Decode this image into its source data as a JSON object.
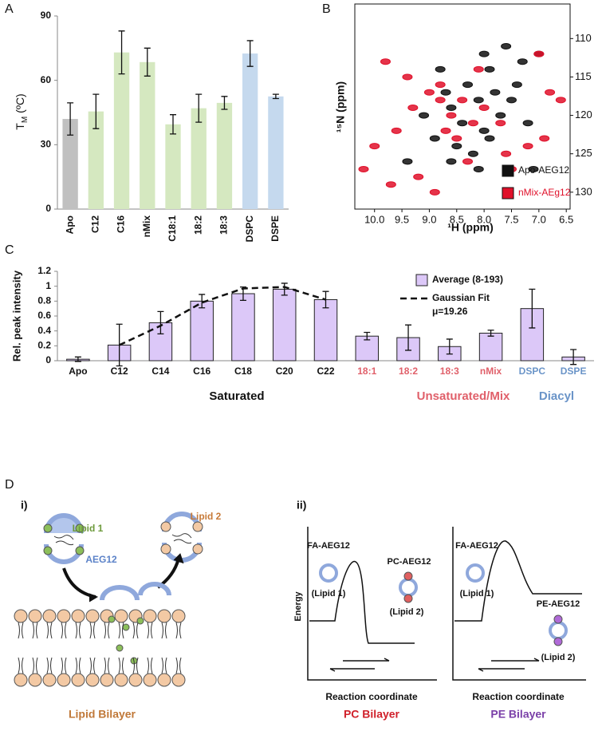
{
  "panel_labels": [
    "A",
    "B",
    "C",
    "D"
  ],
  "subpanel_labels": [
    "i)",
    "ii)"
  ],
  "chart_data": [
    {
      "type": "bar",
      "ylabel": "T",
      "ylabel_sub": "M",
      "ylabel_unit": "(ºC)",
      "categories": [
        "Apo",
        "C12",
        "C16",
        "nMix",
        "C18:1",
        "18:2",
        "18:3",
        "DSPC",
        "DSPE"
      ],
      "values": [
        42,
        45.5,
        73,
        68.5,
        39.5,
        47,
        49.5,
        72.5,
        52.5
      ],
      "errors": [
        7.5,
        8,
        10,
        6.5,
        4.5,
        6.5,
        3,
        6,
        1
      ],
      "colors": [
        "#c0c0c0",
        "#d5e8c0",
        "#d5e8c0",
        "#d5e8c0",
        "#d5e8c0",
        "#d5e8c0",
        "#d5e8c0",
        "#c5d9ee",
        "#c5d9ee"
      ],
      "ylim": [
        0,
        90
      ],
      "yticks": [
        0,
        30,
        60,
        90
      ]
    },
    {
      "type": "scatter",
      "xlabel": "¹H (ppm)",
      "ylabel": "¹⁵N (ppm)",
      "xlim": [
        10.36,
        6.43
      ],
      "ylim": [
        132.2,
        105.5
      ],
      "xticks": [
        {
          "value": 10,
          "label": "10.0"
        },
        9.5,
        {
          "value": 9,
          "label": "9.0"
        },
        8.5,
        {
          "value": 8,
          "label": "8.0"
        },
        7.5,
        {
          "value": 7,
          "label": "7.0"
        },
        6.5
      ],
      "yticks": [
        110,
        115,
        120,
        125,
        130
      ],
      "series": [
        {
          "name": "Apo-AEG12",
          "color": "#111111",
          "x": [
            8.0,
            7.9,
            7.6,
            7.3,
            8.3,
            8.1,
            7.8,
            8.6,
            8.4,
            8.0,
            7.7,
            8.9,
            8.5,
            8.2,
            7.5,
            7.2,
            9.1,
            8.7,
            7.0,
            8.1,
            9.4,
            7.9,
            7.4,
            8.8,
            8.6,
            7.1
          ],
          "y": [
            112,
            114,
            111,
            113,
            116,
            118,
            117,
            119,
            121,
            122,
            120,
            123,
            124,
            125,
            118,
            121,
            120,
            117,
            112,
            127,
            126,
            123,
            116,
            114,
            126,
            127
          ]
        },
        {
          "name": "nMix-AEg12",
          "color": "#e0102a",
          "x": [
            8.4,
            8.6,
            8.2,
            9.0,
            8.8,
            8.5,
            9.3,
            8.0,
            9.6,
            10.0,
            9.8,
            7.0,
            6.8,
            7.2,
            7.5,
            8.9,
            9.2,
            10.2,
            6.6,
            8.3,
            7.7,
            9.4,
            8.7,
            8.1,
            7.6,
            6.9,
            9.7,
            8.8
          ],
          "y": [
            118,
            120,
            121,
            117,
            116,
            123,
            119,
            119,
            122,
            124,
            113,
            112,
            117,
            124,
            127,
            130,
            128,
            127,
            118,
            126,
            121,
            115,
            122,
            114,
            125,
            123,
            129,
            118
          ]
        }
      ]
    },
    {
      "type": "bar",
      "ylabel": "Rel. peak intensity",
      "categories": [
        "Apo",
        "C12",
        "C14",
        "C16",
        "C18",
        "C20",
        "C22",
        "18:1",
        "18:2",
        "18:3",
        "nMix",
        "DSPC",
        "DSPE"
      ],
      "category_colors": [
        "#111111",
        "#111111",
        "#111111",
        "#111111",
        "#111111",
        "#111111",
        "#111111",
        "#e0606a",
        "#e0606a",
        "#e0606a",
        "#e0606a",
        "#6a94c8",
        "#6a94c8"
      ],
      "groups": [
        {
          "label": "Saturated",
          "color": "#111111"
        },
        {
          "label": "Unsaturated/Mix",
          "color": "#e0606a"
        },
        {
          "label": "Diacyl",
          "color": "#6a94c8"
        }
      ],
      "series": [
        {
          "name": "Average (8-193)",
          "color": "#dcc8f8",
          "values": [
            0.02,
            0.21,
            0.51,
            0.8,
            0.9,
            0.96,
            0.82,
            0.33,
            0.31,
            0.19,
            0.37,
            0.7,
            0.05
          ],
          "errors": [
            0.03,
            0.28,
            0.15,
            0.09,
            0.09,
            0.08,
            0.11,
            0.05,
            0.17,
            0.1,
            0.04,
            0.26,
            0.1
          ]
        },
        {
          "name": "Gaussian Fit",
          "type": "line",
          "style": "dashed",
          "color": "#111111",
          "values": [
            null,
            0.21,
            0.47,
            0.78,
            0.97,
            0.99,
            0.82,
            null,
            null,
            null,
            null,
            null,
            null
          ]
        }
      ],
      "annotation": "μ=19.26",
      "ylim": [
        0,
        1.2
      ],
      "yticks": [
        0,
        0.2,
        0.4,
        0.6,
        0.8,
        1,
        1.2
      ]
    }
  ],
  "diagram": {
    "panel_i": {
      "lipid1": "Lipid 1",
      "protein": "AEG12",
      "lipid2": "Lipid 2",
      "caption": "Lipid Bilayer"
    },
    "panel_ii_pc": {
      "state1": "FA-AEG12",
      "state1_lipid": "(Lipid 1)",
      "state2": "PC-AEG12",
      "state2_lipid": "(Lipid 2)",
      "ylabel": "Energy",
      "xlabel": "Reaction coordinate",
      "caption": "PC Bilayer"
    },
    "panel_ii_pe": {
      "state1": "FA-AEG12",
      "state1_lipid": "(Lipid 1)",
      "state2": "PE-AEG12",
      "state2_lipid": "(Lipid 2)",
      "xlabel": "Reaction coordinate",
      "caption": "PE Bilayer"
    }
  }
}
